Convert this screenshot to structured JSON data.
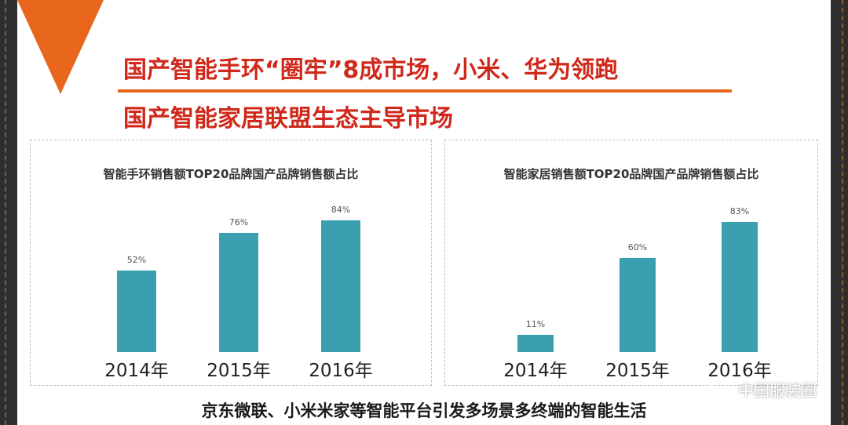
{
  "headlines": {
    "line1": "国产智能手环“圈牢”8成市场，小米、华为领跑",
    "line2": "国产智能家居联盟生态主导市场"
  },
  "footer": "京东微联、小米米家等智能平台引发多场景多终端的智能生活",
  "watermark": "中国服装圈",
  "colors": {
    "bar": "#3aa0b0",
    "headline": "#d0281a",
    "accent": "#e8661c"
  },
  "chart_data": [
    {
      "type": "bar",
      "title": "智能手环销售额TOP20品牌国产品牌销售额占比",
      "categories": [
        "2014年",
        "2015年",
        "2016年"
      ],
      "values": [
        52,
        76,
        84
      ],
      "value_labels": [
        "52%",
        "76%",
        "84%"
      ],
      "xlabel": "",
      "ylabel": "",
      "ylim": [
        0,
        100
      ],
      "grid": false
    },
    {
      "type": "bar",
      "title": "智能家居销售额TOP20品牌国产品牌销售额占比",
      "categories": [
        "2014年",
        "2015年",
        "2016年"
      ],
      "values": [
        11,
        60,
        83
      ],
      "value_labels": [
        "11%",
        "60%",
        "83%"
      ],
      "xlabel": "",
      "ylabel": "",
      "ylim": [
        0,
        100
      ],
      "grid": false
    }
  ]
}
